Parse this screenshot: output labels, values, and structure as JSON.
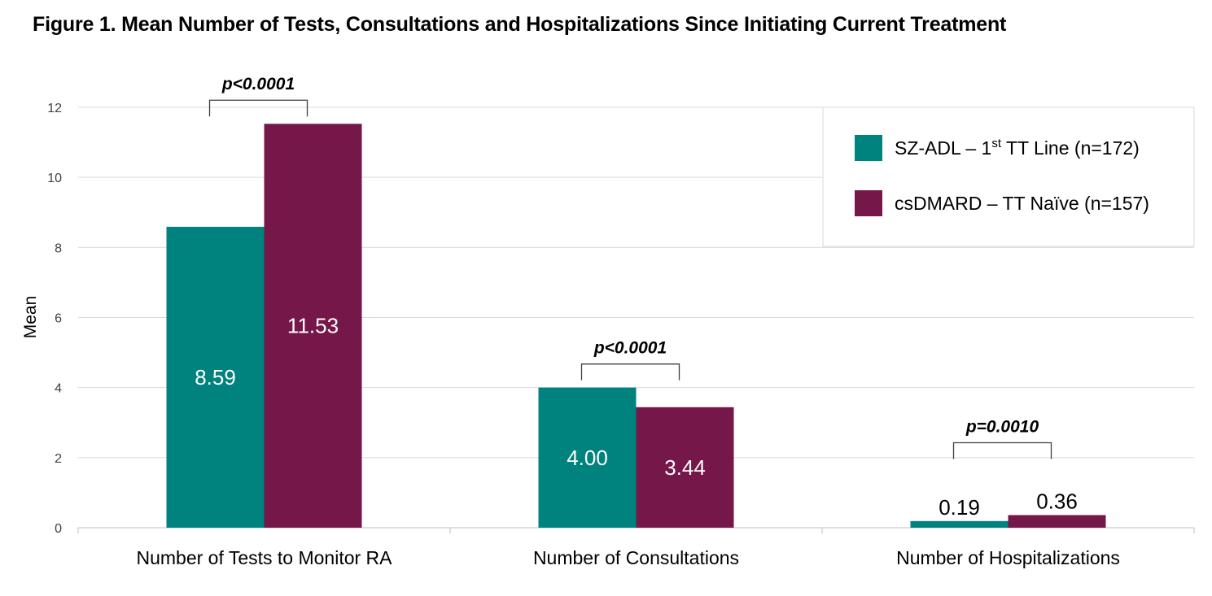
{
  "chart_data": {
    "type": "bar",
    "title": "Figure 1. Mean Number of Tests, Consultations and Hospitalizations Since Initiating Current Treatment",
    "ylabel": "Mean",
    "ylim": [
      0,
      12
    ],
    "yticks": [
      0,
      2,
      4,
      6,
      8,
      10,
      12
    ],
    "grid": true,
    "legend_position": "top-right",
    "categories": [
      "Number of Tests to Monitor RA",
      "Number of Consultations",
      "Number of Hospitalizations"
    ],
    "series": [
      {
        "name_main": "SZ-ADL – 1",
        "name_sup": "st",
        "name_tail": " TT Line (n=172)",
        "color": "#00827F",
        "values": [
          8.59,
          4.0,
          0.19
        ],
        "labels": [
          "8.59",
          "4.00",
          "0.19"
        ]
      },
      {
        "name_main": "csDMARD – TT Naïve (n=157)",
        "name_sup": "",
        "name_tail": "",
        "color": "#751748",
        "values": [
          11.53,
          3.44,
          0.36
        ],
        "labels": [
          "11.53",
          "3.44",
          "0.36"
        ]
      }
    ],
    "annotations": [
      "p<0.0001",
      "p<0.0001",
      "p=0.0010"
    ]
  }
}
